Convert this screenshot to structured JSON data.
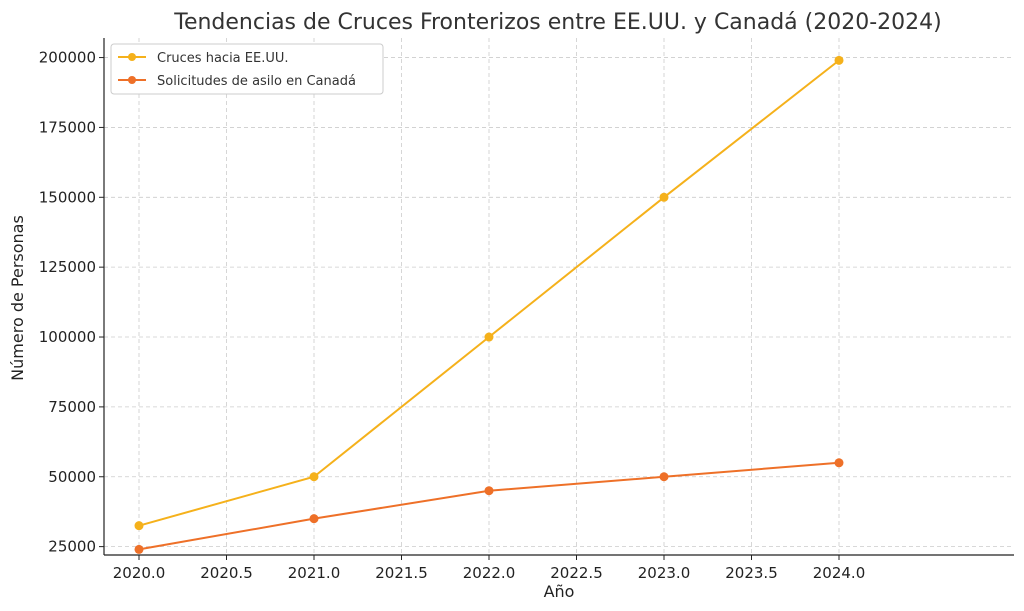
{
  "chart_data": {
    "type": "line",
    "title": "Tendencias de Cruces Fronterizos entre EE.UU. y Canadá (2020-2024)",
    "xlabel": "Año",
    "ylabel": "Número de Personas",
    "x": [
      2020,
      2021,
      2022,
      2023,
      2024
    ],
    "xlim": [
      2019.8,
      2025.0
    ],
    "ylim": [
      22000,
      207000
    ],
    "xticks": [
      "2020.0",
      "2020.5",
      "2021.0",
      "2021.5",
      "2022.0",
      "2022.5",
      "2023.0",
      "2023.5",
      "2024.0"
    ],
    "yticks": [
      "25000",
      "50000",
      "75000",
      "100000",
      "125000",
      "150000",
      "175000",
      "200000"
    ],
    "grid": true,
    "legend_position": "top-left",
    "series": [
      {
        "name": "Cruces hacia EE.UU.",
        "color": "#F5B11B",
        "values": [
          32500,
          50000,
          100000,
          150000,
          199000
        ]
      },
      {
        "name": "Solicitudes de asilo en Canadá",
        "color": "#EE7028",
        "values": [
          24000,
          35000,
          45000,
          50000,
          55000
        ]
      }
    ]
  }
}
